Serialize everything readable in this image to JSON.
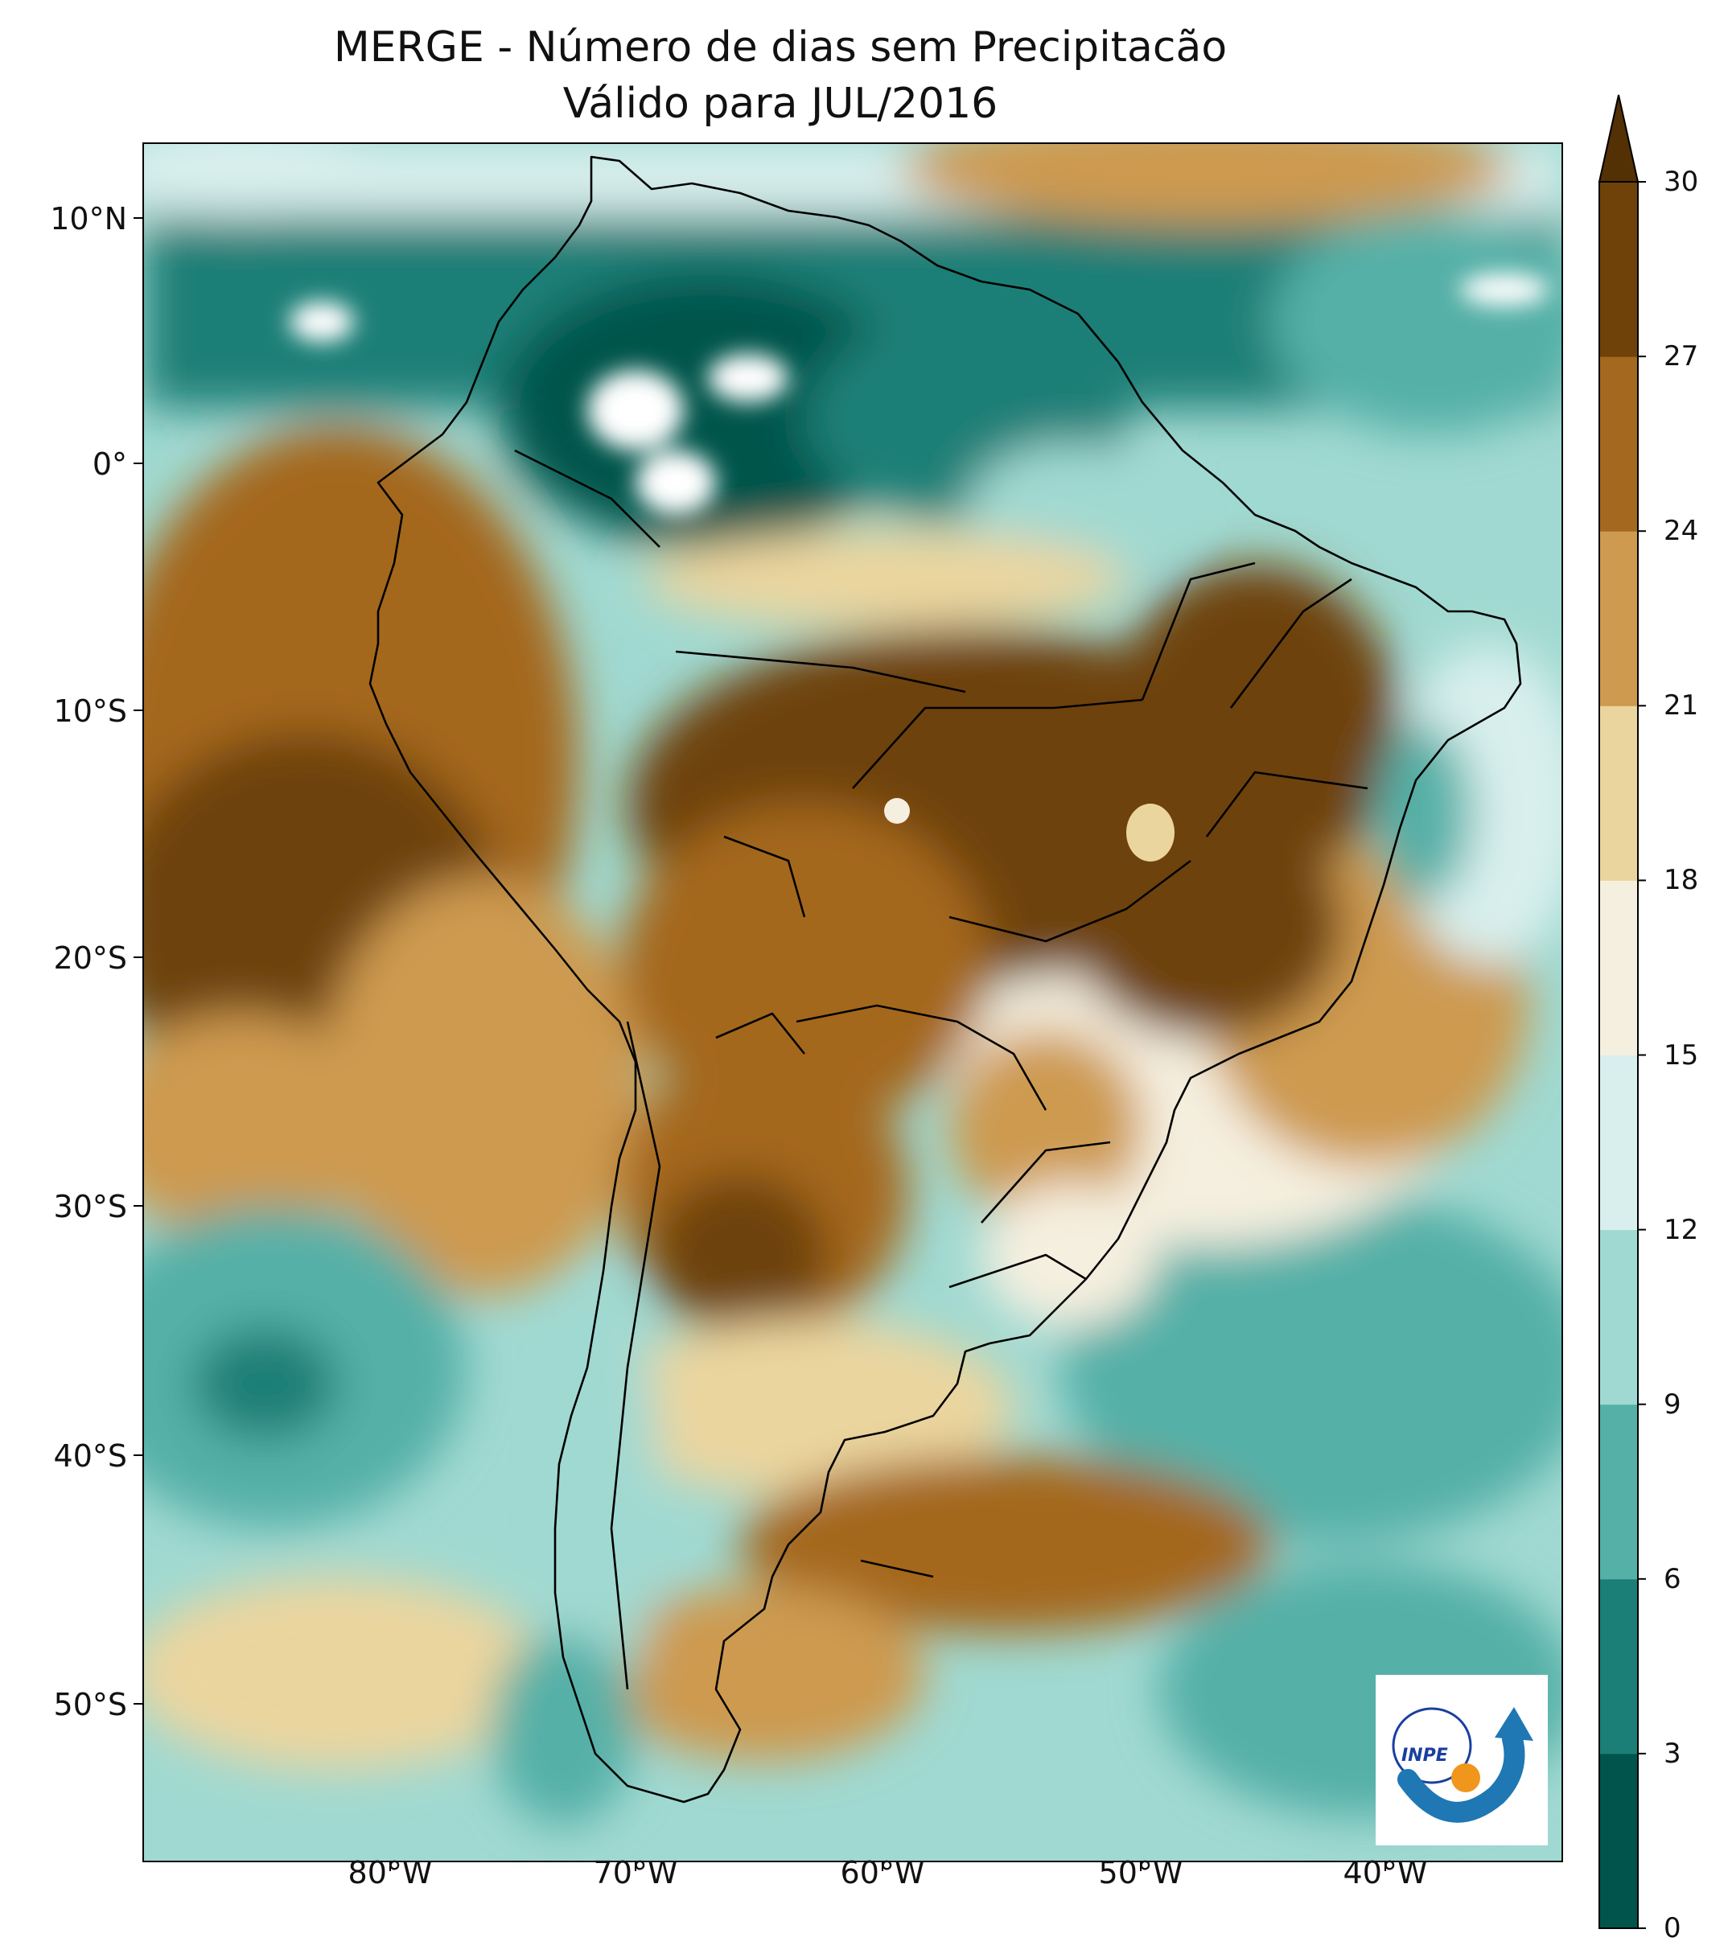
{
  "title_line1": "MERGE - Número de dias sem Precipitacão",
  "title_line2": "Válido para JUL/2016",
  "lat_labels": [
    "10°N",
    "0°",
    "10°S",
    "20°S",
    "30°S",
    "40°S",
    "50°S"
  ],
  "lon_labels": [
    "80°W",
    "70°W",
    "60°W",
    "50°W",
    "40°W"
  ],
  "colorbar": {
    "ticks": [
      "0",
      "3",
      "6",
      "9",
      "12",
      "15",
      "18",
      "21",
      "24",
      "27",
      "30"
    ],
    "colors": [
      "#01544b",
      "#1b7f77",
      "#55b0a7",
      "#a0d9d1",
      "#d8efed",
      "#f5efdf",
      "#ebd59f",
      "#cd9a50",
      "#a4681f",
      "#6e4209"
    ],
    "extend": "max",
    "extend_color": "#543005"
  },
  "logo": {
    "text": "INPE",
    "arrow_color": "#1f77b4",
    "dot_color": "#f0961c"
  },
  "map": {
    "ocean_low_color": "#1b7f77",
    "dry_color": "#6e4209",
    "border_color": "#000000",
    "missing_color": "#ffffff"
  }
}
